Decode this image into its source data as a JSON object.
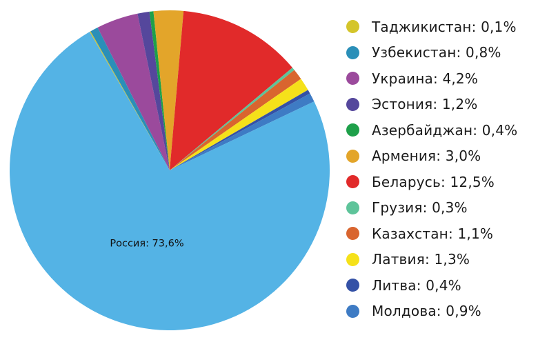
{
  "chart_data": {
    "type": "pie",
    "start_angle_deg": 120,
    "legend_position": "right",
    "slices": [
      {
        "label": "Таджикистан: 0,1%",
        "value": 0.1,
        "color": "#D4C52A",
        "show_inside": false
      },
      {
        "label": "Узбекистан: 0,8%",
        "value": 0.8,
        "color": "#2A8FB8",
        "show_inside": false
      },
      {
        "label": "Украина: 4,2%",
        "value": 4.2,
        "color": "#9B4A9C",
        "show_inside": false
      },
      {
        "label": "Эстония: 1,2%",
        "value": 1.2,
        "color": "#55479C",
        "show_inside": false
      },
      {
        "label": "Азербайджан: 0,4%",
        "value": 0.4,
        "color": "#1EA04A",
        "show_inside": false
      },
      {
        "label": "Армения: 3,0%",
        "value": 3.0,
        "color": "#E3A52A",
        "show_inside": false
      },
      {
        "label": "Беларусь: 12,5%",
        "value": 12.5,
        "color": "#E12A2A",
        "show_inside": false
      },
      {
        "label": "Грузия: 0,3%",
        "value": 0.3,
        "color": "#5EC49A",
        "show_inside": false
      },
      {
        "label": "Казахстан: 1,1%",
        "value": 1.1,
        "color": "#D9652F",
        "show_inside": false
      },
      {
        "label": "Латвия: 1,3%",
        "value": 1.3,
        "color": "#F5E11A",
        "show_inside": false
      },
      {
        "label": "Литва: 0,4%",
        "value": 0.4,
        "color": "#3451A6",
        "show_inside": false
      },
      {
        "label": "Молдова: 0,9%",
        "value": 0.9,
        "color": "#3E7BC4",
        "show_inside": false
      },
      {
        "label": "Россия: 73,6%",
        "value": 73.6,
        "color": "#54B3E5",
        "show_inside": true
      }
    ]
  },
  "legend": [
    {
      "text": "Таджикистан: 0,1%",
      "color": "#D4C52A"
    },
    {
      "text": "Узбекистан: 0,8%",
      "color": "#2A8FB8"
    },
    {
      "text": "Украина: 4,2%",
      "color": "#9B4A9C"
    },
    {
      "text": "Эстония: 1,2%",
      "color": "#55479C"
    },
    {
      "text": "Азербайджан: 0,4%",
      "color": "#1EA04A"
    },
    {
      "text": "Армения: 3,0%",
      "color": "#E3A52A"
    },
    {
      "text": "Беларусь: 12,5%",
      "color": "#E12A2A"
    },
    {
      "text": "Грузия: 0,3%",
      "color": "#5EC49A"
    },
    {
      "text": "Казахстан: 1,1%",
      "color": "#D9652F"
    },
    {
      "text": "Латвия: 1,3%",
      "color": "#F5E11A"
    },
    {
      "text": "Литва: 0,4%",
      "color": "#3451A6"
    },
    {
      "text": "Молдова: 0,9%",
      "color": "#3E7BC4"
    }
  ]
}
